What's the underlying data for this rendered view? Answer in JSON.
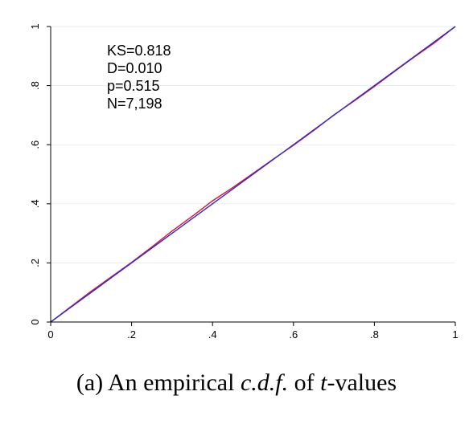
{
  "chart_data": {
    "type": "line",
    "title": "",
    "xlabel": "",
    "ylabel": "",
    "xlim": [
      0,
      1
    ],
    "ylim": [
      0,
      1
    ],
    "x_ticks": [
      {
        "value": 0,
        "label": "0"
      },
      {
        "value": 0.2,
        "label": ".2"
      },
      {
        "value": 0.4,
        "label": ".4"
      },
      {
        "value": 0.6,
        "label": ".6"
      },
      {
        "value": 0.8,
        "label": ".8"
      },
      {
        "value": 1,
        "label": "1"
      }
    ],
    "y_ticks": [
      {
        "value": 0,
        "label": "0"
      },
      {
        "value": 0.2,
        "label": ".2"
      },
      {
        "value": 0.4,
        "label": ".4"
      },
      {
        "value": 0.6,
        "label": ".6"
      },
      {
        "value": 0.8,
        "label": ".8"
      },
      {
        "value": 1,
        "label": "1"
      }
    ],
    "grid": "horizontal",
    "annotations": [
      "KS=0.818",
      "D=0.010",
      "p=0.515",
      "N=7,198"
    ],
    "series": [
      {
        "color": "#e8102a",
        "x": [
          0,
          0.05,
          0.1,
          0.15,
          0.2,
          0.25,
          0.3,
          0.35,
          0.4,
          0.45,
          0.5,
          0.55,
          0.6,
          0.65,
          0.7,
          0.75,
          0.8,
          0.85,
          0.9,
          0.95,
          1
        ],
        "y": [
          0,
          0.052,
          0.104,
          0.153,
          0.202,
          0.254,
          0.308,
          0.358,
          0.41,
          0.455,
          0.503,
          0.551,
          0.598,
          0.648,
          0.701,
          0.748,
          0.797,
          0.848,
          0.898,
          0.946,
          1
        ]
      },
      {
        "color": "#2a2ad8",
        "x": [
          0,
          1
        ],
        "y": [
          0,
          1
        ]
      }
    ]
  },
  "caption": {
    "prefix": "(a) An empirical ",
    "emph1": "c.d.f.",
    "middle": " of ",
    "emph2": "t",
    "suffix": "-values"
  }
}
